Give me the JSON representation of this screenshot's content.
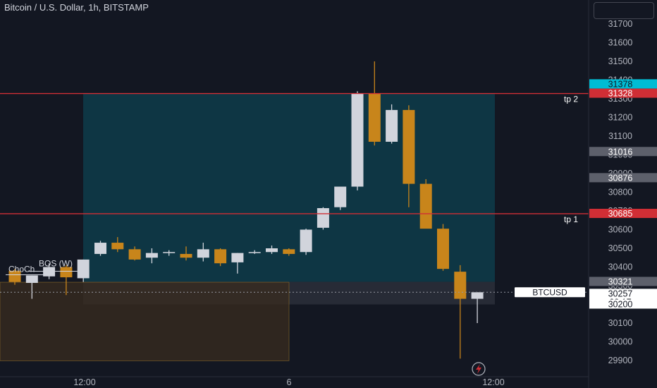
{
  "title": "Bitcoin / U.S. Dollar, 1h, BITSTAMP",
  "colors": {
    "background": "#131722",
    "up": "#d1d4dc",
    "down": "#c8851b",
    "target_line": "#d02e35",
    "profit_zone": "#0e3a48",
    "stop_zone": "#2a2e39",
    "demand_zone": "#3a2c1f",
    "axis_text": "#b2b5be",
    "highlight_teal": "#00bcd4"
  },
  "chart_data": {
    "type": "candlestick",
    "symbol": "BTCUSD",
    "interval": "1h",
    "exchange": "BITSTAMP",
    "ylim": [
      29880,
      31770
    ],
    "y_ticks": [
      31700,
      31600,
      31500,
      31400,
      31300,
      31200,
      31100,
      31000,
      30900,
      30800,
      30700,
      30600,
      30500,
      30400,
      30300,
      30200,
      30100,
      30000,
      29900
    ],
    "x_tick_labels": [
      "12:00",
      "6",
      "12:00"
    ],
    "candles": [
      {
        "open": 30380,
        "high": 30390,
        "low": 30305,
        "close": 30320
      },
      {
        "open": 30315,
        "high": 30355,
        "low": 30230,
        "close": 30355
      },
      {
        "open": 30350,
        "high": 30420,
        "low": 30335,
        "close": 30400
      },
      {
        "open": 30400,
        "high": 30410,
        "low": 30250,
        "close": 30345
      },
      {
        "open": 30340,
        "high": 30440,
        "low": 30320,
        "close": 30440
      },
      {
        "open": 30470,
        "high": 30540,
        "low": 30460,
        "close": 30530
      },
      {
        "open": 30530,
        "high": 30560,
        "low": 30480,
        "close": 30495
      },
      {
        "open": 30495,
        "high": 30510,
        "low": 30435,
        "close": 30440
      },
      {
        "open": 30450,
        "high": 30500,
        "low": 30420,
        "close": 30475
      },
      {
        "open": 30480,
        "high": 30490,
        "low": 30460,
        "close": 30480
      },
      {
        "open": 30470,
        "high": 30510,
        "low": 30435,
        "close": 30450
      },
      {
        "open": 30450,
        "high": 30530,
        "low": 30430,
        "close": 30495
      },
      {
        "open": 30495,
        "high": 30500,
        "low": 30405,
        "close": 30420
      },
      {
        "open": 30425,
        "high": 30475,
        "low": 30365,
        "close": 30475
      },
      {
        "open": 30480,
        "high": 30490,
        "low": 30470,
        "close": 30480
      },
      {
        "open": 30480,
        "high": 30515,
        "low": 30470,
        "close": 30500
      },
      {
        "open": 30495,
        "high": 30500,
        "low": 30460,
        "close": 30470
      },
      {
        "open": 30480,
        "high": 30605,
        "low": 30465,
        "close": 30600
      },
      {
        "open": 30610,
        "high": 30720,
        "low": 30600,
        "close": 30715
      },
      {
        "open": 30720,
        "high": 30825,
        "low": 30705,
        "close": 30830
      },
      {
        "open": 30830,
        "high": 31340,
        "low": 30810,
        "close": 31330
      },
      {
        "open": 31330,
        "high": 31500,
        "low": 31050,
        "close": 31070
      },
      {
        "open": 31070,
        "high": 31270,
        "low": 31060,
        "close": 31240
      },
      {
        "open": 31240,
        "high": 31265,
        "low": 30720,
        "close": 30845
      },
      {
        "open": 30845,
        "high": 30870,
        "low": 30615,
        "close": 30605
      },
      {
        "open": 30605,
        "high": 30630,
        "low": 30380,
        "close": 30390
      },
      {
        "open": 30375,
        "high": 30410,
        "low": 29910,
        "close": 30230
      },
      {
        "open": 30230,
        "high": 30265,
        "low": 30100,
        "close": 30265
      }
    ],
    "horizontal_lines": [
      {
        "label": "tp 2",
        "value": 31328
      },
      {
        "label": "tp 1",
        "value": 30685
      }
    ],
    "zones": {
      "profit": {
        "from": 30321,
        "to": 31328
      },
      "stop": {
        "from": 30200,
        "to": 30321
      },
      "demand": {
        "from": 29910,
        "to": 30330
      }
    },
    "annotations": [
      "BOS (W)",
      "ChoCh"
    ],
    "price_labels": [
      {
        "text": "31378",
        "style": "teal"
      },
      {
        "text": "31328",
        "style": "teal"
      },
      {
        "text": "31328",
        "style": "red"
      },
      {
        "text": "31016",
        "style": "gray"
      },
      {
        "text": "30876",
        "style": "gray"
      },
      {
        "text": "30685",
        "style": "red"
      },
      {
        "text": "30321",
        "style": "gray"
      },
      {
        "text": "30257",
        "style": "white"
      },
      {
        "text": "28:17",
        "style": "white"
      },
      {
        "text": "30200",
        "style": "white"
      }
    ],
    "current_price_label": "BTCUSD"
  }
}
